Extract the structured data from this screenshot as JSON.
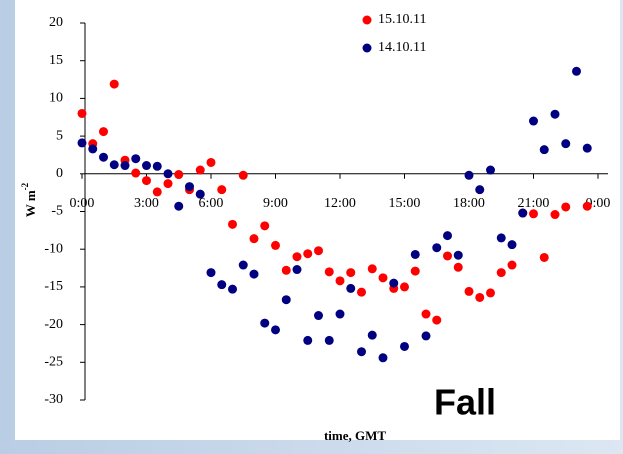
{
  "chart_data": {
    "type": "scatter",
    "x_label": "time, GMT",
    "y_label": "W m",
    "y_label_sup": "-2",
    "annotation": "Fall",
    "xlim": [
      0,
      24
    ],
    "xticks": [
      {
        "value": 0,
        "label": "0:00"
      },
      {
        "value": 3,
        "label": "3:00"
      },
      {
        "value": 6,
        "label": "6:00"
      },
      {
        "value": 9,
        "label": "9:00"
      },
      {
        "value": 12,
        "label": "12:00"
      },
      {
        "value": 15,
        "label": "15:00"
      },
      {
        "value": 18,
        "label": "18:00"
      },
      {
        "value": 21,
        "label": "21:00"
      },
      {
        "value": 24,
        "label": "0:00"
      }
    ],
    "ylim": [
      -30,
      20
    ],
    "yticks": [
      -30,
      -25,
      -20,
      -15,
      -10,
      -5,
      0,
      5,
      10,
      15,
      20
    ],
    "series": [
      {
        "name": "15.10.11",
        "color": "#ff0000",
        "x": [
          0,
          0.5,
          1,
          1.5,
          2,
          2.5,
          3,
          3.5,
          4,
          4.5,
          5,
          5.5,
          6,
          6.5,
          7,
          7.5,
          8,
          8.5,
          9,
          9.5,
          10,
          10.5,
          11,
          11.5,
          12,
          12.5,
          13,
          13.5,
          14,
          14.5,
          15,
          15.5,
          16,
          16.5,
          17,
          17.5,
          18,
          18.5,
          19,
          19.5,
          20,
          20.5,
          21,
          21.5,
          22,
          22.5,
          23.5
        ],
        "values": [
          8.0,
          4.0,
          5.6,
          11.9,
          1.8,
          0.1,
          -0.9,
          -2.4,
          -1.3,
          -0.1,
          -2.1,
          0.5,
          1.5,
          -2.1,
          -6.7,
          -0.2,
          -8.6,
          -6.9,
          -9.5,
          -12.8,
          -11.0,
          -10.6,
          -10.2,
          -13.0,
          -14.2,
          -13.1,
          -15.7,
          -12.6,
          -13.8,
          -15.2,
          -15.0,
          -12.9,
          -18.6,
          -19.4,
          -10.9,
          -12.4,
          -15.6,
          -16.4,
          -15.8,
          -13.1,
          -12.1,
          -5.2,
          -5.3,
          -11.1,
          -5.4,
          -4.4,
          -4.3
        ]
      },
      {
        "name": "14.10.11",
        "color": "#000080",
        "x": [
          0,
          0.5,
          1,
          1.5,
          2,
          2.5,
          3,
          3.5,
          4,
          4.5,
          5,
          5.5,
          6,
          6.5,
          7,
          7.5,
          8,
          8.5,
          9,
          9.5,
          10,
          10.5,
          11,
          11.5,
          12,
          12.5,
          13,
          13.5,
          14,
          14.5,
          15,
          15.5,
          16,
          16.5,
          17,
          17.5,
          18,
          18.5,
          19,
          19.5,
          20,
          20.5,
          21,
          21.5,
          22,
          22.5,
          23,
          23.5
        ],
        "values": [
          4.1,
          3.3,
          2.2,
          1.2,
          1.1,
          2.0,
          1.1,
          1.0,
          0.0,
          -4.3,
          -1.7,
          -2.7,
          -13.1,
          -14.7,
          -15.3,
          -12.1,
          -13.3,
          -19.8,
          -20.7,
          -16.7,
          -12.7,
          -22.1,
          -18.8,
          -22.1,
          -18.6,
          -15.2,
          -23.6,
          -21.4,
          -24.4,
          -14.5,
          -22.9,
          -10.7,
          -21.5,
          -9.8,
          -8.2,
          -10.8,
          -0.2,
          -2.1,
          0.5,
          -8.5,
          -9.4,
          -5.2,
          7.0,
          3.2,
          7.9,
          4.0,
          13.6,
          3.4
        ]
      }
    ]
  }
}
